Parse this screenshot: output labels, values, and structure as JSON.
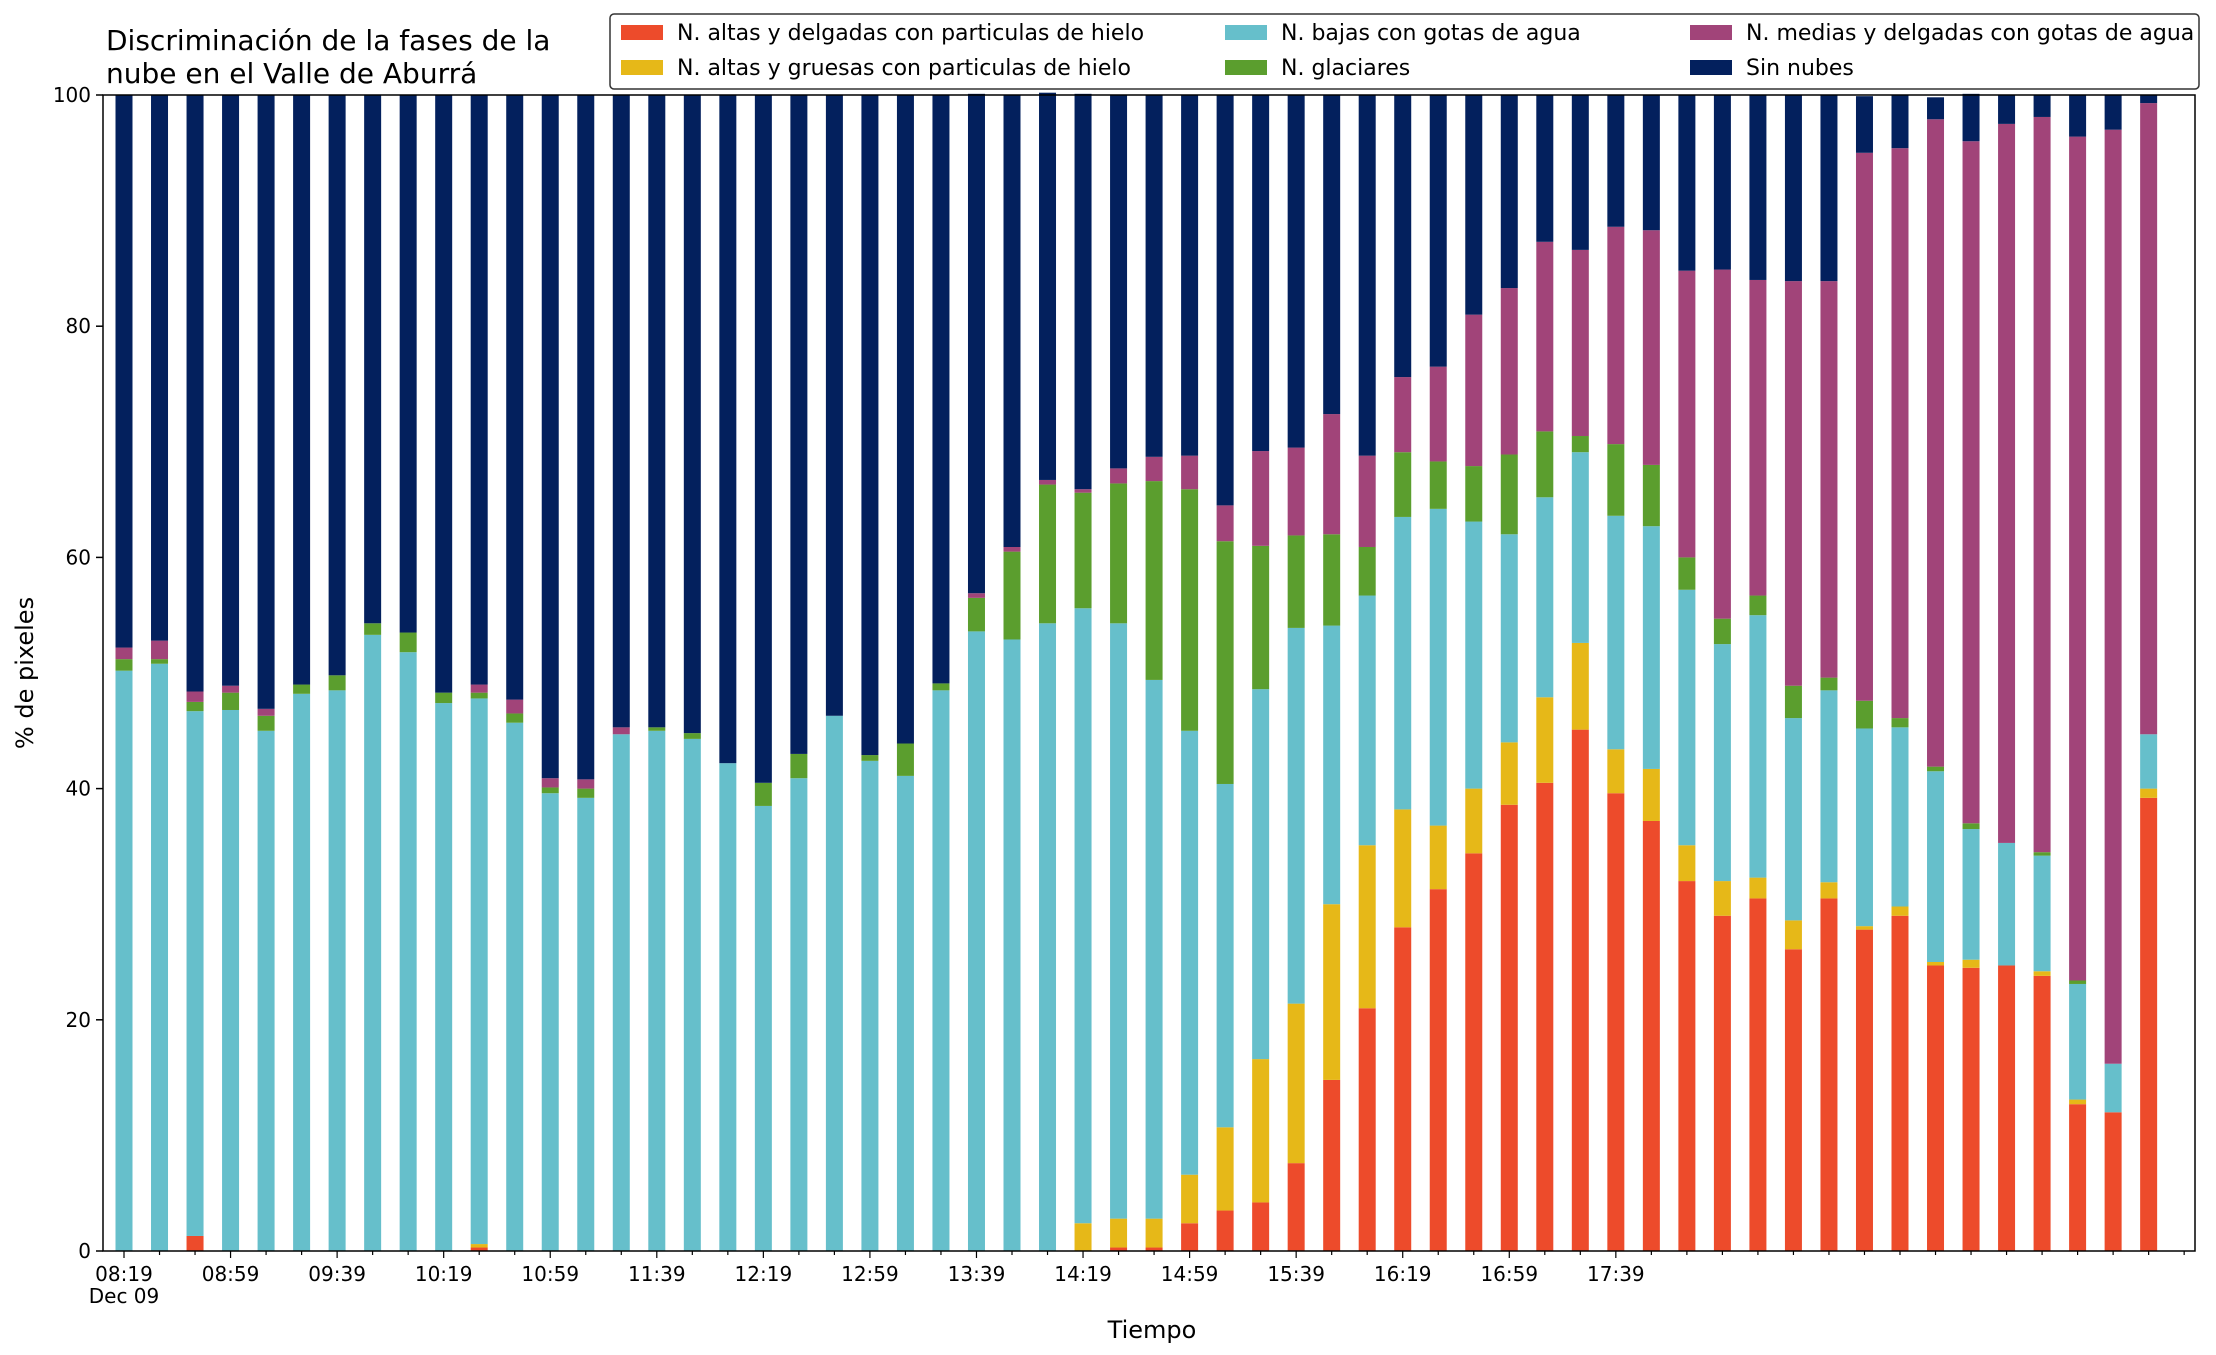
{
  "chart_data": {
    "type": "bar",
    "stacked": true,
    "title_lines": [
      "Discriminación de la fases de la",
      "nube en el Valle de Aburrá"
    ],
    "xlabel": "Tiempo",
    "ylabel": "% de pixeles",
    "ylim": [
      0,
      100
    ],
    "yticks": [
      0,
      20,
      40,
      60,
      80,
      100
    ],
    "grid": false,
    "legend_position": "top-right",
    "x_tick_labels": [
      "08:19",
      "08:59",
      "09:39",
      "10:19",
      "10:59",
      "11:39",
      "12:19",
      "12:59",
      "13:39",
      "14:19",
      "14:59",
      "15:39",
      "16:19",
      "16:59",
      "17:39"
    ],
    "x_date_label": "Dec 09",
    "x_tick_step": 3,
    "x_start": "08:19",
    "x_interval_minutes": 10,
    "n_bars": 58,
    "series": [
      {
        "name": "N. altas y delgadas con particulas de hielo",
        "color": "#ed4b2b",
        "values": [
          0,
          0,
          1.3,
          0,
          0,
          0,
          0,
          0,
          0,
          0,
          0.3,
          0,
          0,
          0,
          0,
          0,
          0,
          0,
          0,
          0,
          0,
          0,
          0,
          0,
          0,
          0,
          0,
          0,
          0.3,
          0.3,
          2.4,
          3.5,
          4.2,
          7.6,
          14.8,
          21.0,
          28.0,
          31.3,
          34.4,
          38.6,
          40.5,
          45.1,
          39.6,
          37.2,
          32.0,
          29.0,
          30.5,
          26.1,
          30.5,
          27.8,
          29.0,
          24.7,
          24.5,
          24.7,
          23.8,
          12.7,
          12.0,
          39.2
        ]
      },
      {
        "name": "N. altas y gruesas con particulas de hielo",
        "color": "#e6b818",
        "values": [
          0,
          0,
          0,
          0,
          0,
          0,
          0,
          0,
          0,
          0,
          0.3,
          0,
          0,
          0,
          0,
          0,
          0,
          0,
          0,
          0,
          0,
          0,
          0,
          0,
          0,
          0,
          0,
          2.4,
          2.5,
          2.5,
          4.2,
          7.2,
          12.4,
          13.8,
          15.2,
          14.1,
          10.2,
          5.5,
          5.6,
          5.4,
          7.4,
          7.5,
          3.8,
          4.5,
          3.1,
          3.0,
          1.8,
          2.5,
          1.4,
          0.3,
          0.8,
          0.3,
          0.7,
          0,
          0.4,
          0.4,
          0,
          0.8
        ]
      },
      {
        "name": "N. bajas con gotas de agua",
        "color": "#66bfcb",
        "values": [
          50.2,
          50.8,
          45.4,
          46.8,
          45.0,
          48.2,
          48.5,
          53.3,
          51.8,
          47.4,
          47.2,
          45.7,
          39.6,
          39.2,
          44.7,
          45.0,
          44.3,
          42.2,
          38.5,
          40.9,
          46.3,
          42.4,
          41.1,
          48.5,
          53.6,
          52.9,
          54.3,
          53.2,
          51.5,
          46.6,
          38.4,
          29.7,
          32.0,
          32.5,
          24.1,
          21.6,
          25.3,
          27.4,
          23.1,
          18.0,
          17.3,
          16.5,
          20.2,
          21.0,
          22.1,
          20.5,
          22.7,
          17.5,
          16.6,
          17.1,
          15.5,
          16.5,
          11.3,
          10.6,
          10.0,
          10.0,
          4.2,
          4.7
        ]
      },
      {
        "name": "N. glaciares",
        "color": "#5b9e2e",
        "values": [
          1.0,
          0.4,
          0.8,
          1.5,
          1.3,
          0.8,
          1.3,
          1.0,
          1.7,
          0.9,
          0.5,
          0.8,
          0.5,
          0.8,
          0,
          0.3,
          0.5,
          0,
          2.0,
          2.1,
          0,
          0.5,
          2.8,
          0.6,
          2.9,
          7.6,
          12.0,
          10.0,
          12.1,
          17.2,
          20.9,
          21.0,
          12.4,
          8.0,
          7.9,
          4.2,
          5.6,
          4.1,
          4.8,
          6.9,
          5.7,
          1.4,
          6.2,
          5.3,
          2.8,
          2.2,
          1.7,
          2.8,
          1.1,
          2.4,
          0.8,
          0.4,
          0.5,
          0,
          0.3,
          0.3,
          0,
          0
        ]
      },
      {
        "name": "N. medias y delgadas con gotas de agua",
        "color": "#a14479",
        "values": [
          1.0,
          1.6,
          0.9,
          0.6,
          0.6,
          0,
          0,
          0,
          0,
          0,
          0.7,
          1.2,
          0.8,
          0.8,
          0.6,
          0,
          0,
          0,
          0,
          0,
          0,
          0,
          0,
          0,
          0.4,
          0.4,
          0.4,
          0.3,
          1.3,
          2.1,
          2.9,
          3.1,
          8.2,
          7.6,
          10.4,
          7.9,
          6.5,
          8.2,
          13.1,
          14.4,
          16.4,
          16.1,
          18.8,
          20.3,
          24.8,
          30.2,
          27.3,
          35.0,
          34.3,
          47.4,
          49.3,
          56.0,
          59.0,
          62.2,
          63.6,
          73.0,
          80.8,
          54.6
        ]
      },
      {
        "name": "Sin nubes",
        "color": "#03205d",
        "values": [
          47.8,
          47.2,
          51.6,
          51.1,
          53.1,
          51.0,
          50.2,
          45.7,
          46.5,
          51.7,
          51.0,
          52.3,
          59.1,
          59.2,
          54.7,
          54.7,
          55.2,
          57.8,
          59.5,
          57.0,
          53.7,
          57.1,
          56.1,
          50.9,
          43.2,
          39.1,
          33.5,
          34.2,
          32.3,
          31.3,
          31.2,
          35.5,
          30.8,
          30.5,
          27.6,
          31.2,
          24.4,
          23.5,
          19.0,
          16.7,
          12.7,
          13.4,
          11.4,
          11.7,
          15.2,
          15.1,
          16.0,
          16.1,
          16.1,
          4.9,
          4.6,
          1.9,
          4.1,
          2.5,
          1.9,
          3.6,
          3.0,
          0.7
        ]
      }
    ]
  }
}
